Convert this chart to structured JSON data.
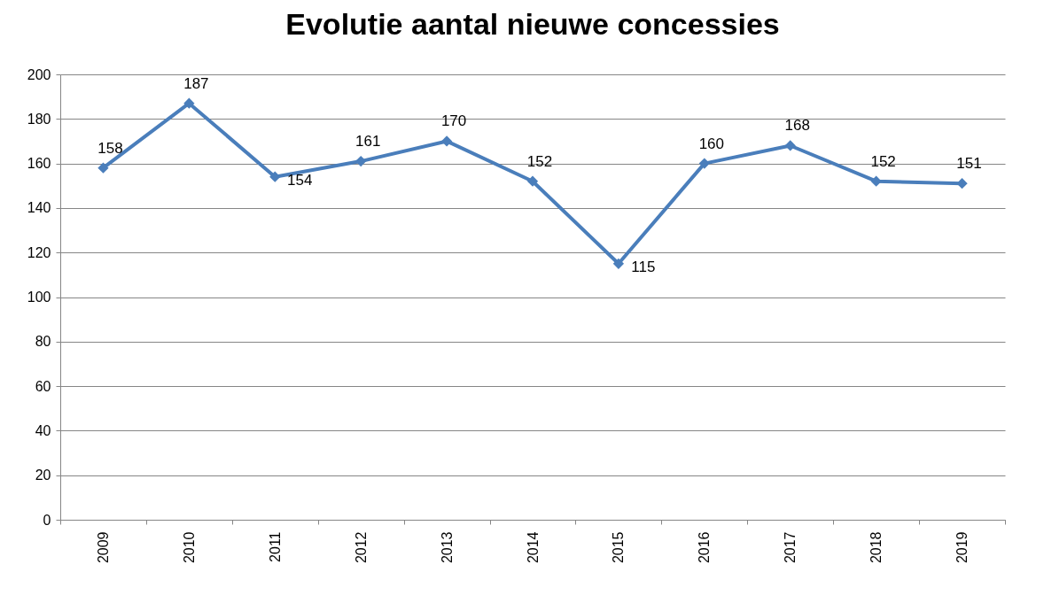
{
  "chart_data": {
    "type": "line",
    "title": "Evolutie aantal nieuwe concessies",
    "categories": [
      "2009",
      "2010",
      "2011",
      "2012",
      "2013",
      "2014",
      "2015",
      "2016",
      "2017",
      "2018",
      "2019"
    ],
    "series": [
      {
        "color": "#4a7ebb",
        "values": [
          158,
          187,
          154,
          161,
          170,
          152,
          115,
          160,
          168,
          152,
          151
        ]
      }
    ],
    "ylim": [
      0,
      200
    ],
    "yticks": [
      0,
      20,
      40,
      60,
      80,
      100,
      120,
      140,
      160,
      180,
      200
    ],
    "grid": "y",
    "marker": "diamond",
    "line_style": "solid",
    "data_labels": true
  }
}
